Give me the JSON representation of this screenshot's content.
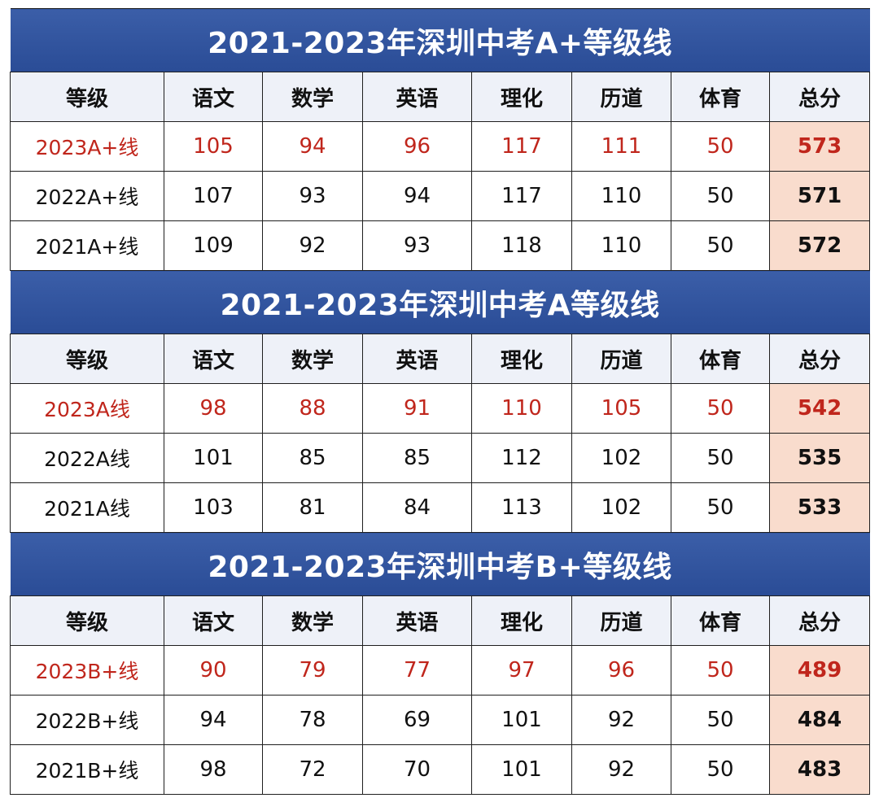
{
  "columns": [
    "等级",
    "语文",
    "数学",
    "英语",
    "理化",
    "历道",
    "体育",
    "总分"
  ],
  "sections": [
    {
      "title": "2021-2023年深圳中考A+等级线",
      "rows": [
        {
          "label": "2023A+线",
          "values": [
            "105",
            "94",
            "96",
            "117",
            "111",
            "50"
          ],
          "total": "573",
          "highlight": true
        },
        {
          "label": "2022A+线",
          "values": [
            "107",
            "93",
            "94",
            "117",
            "110",
            "50"
          ],
          "total": "571",
          "highlight": false
        },
        {
          "label": "2021A+线",
          "values": [
            "109",
            "92",
            "93",
            "118",
            "110",
            "50"
          ],
          "total": "572",
          "highlight": false
        }
      ]
    },
    {
      "title": "2021-2023年深圳中考A等级线",
      "rows": [
        {
          "label": "2023A线",
          "values": [
            "98",
            "88",
            "91",
            "110",
            "105",
            "50"
          ],
          "total": "542",
          "highlight": true
        },
        {
          "label": "2022A线",
          "values": [
            "101",
            "85",
            "85",
            "112",
            "102",
            "50"
          ],
          "total": "535",
          "highlight": false
        },
        {
          "label": "2021A线",
          "values": [
            "103",
            "81",
            "84",
            "113",
            "102",
            "50"
          ],
          "total": "533",
          "highlight": false
        }
      ]
    },
    {
      "title": "2021-2023年深圳中考B+等级线",
      "rows": [
        {
          "label": "2023B+线",
          "values": [
            "90",
            "79",
            "77",
            "97",
            "96",
            "50"
          ],
          "total": "489",
          "highlight": true
        },
        {
          "label": "2022B+线",
          "values": [
            "94",
            "78",
            "69",
            "101",
            "92",
            "50"
          ],
          "total": "484",
          "highlight": false
        },
        {
          "label": "2021B+线",
          "values": [
            "98",
            "72",
            "70",
            "101",
            "92",
            "50"
          ],
          "total": "483",
          "highlight": false
        }
      ]
    }
  ],
  "colors": {
    "title_bar": "#2f519c",
    "highlight_text": "#c0261c",
    "total_cell": "#f9dccd",
    "header_row": "#eef1f8"
  }
}
